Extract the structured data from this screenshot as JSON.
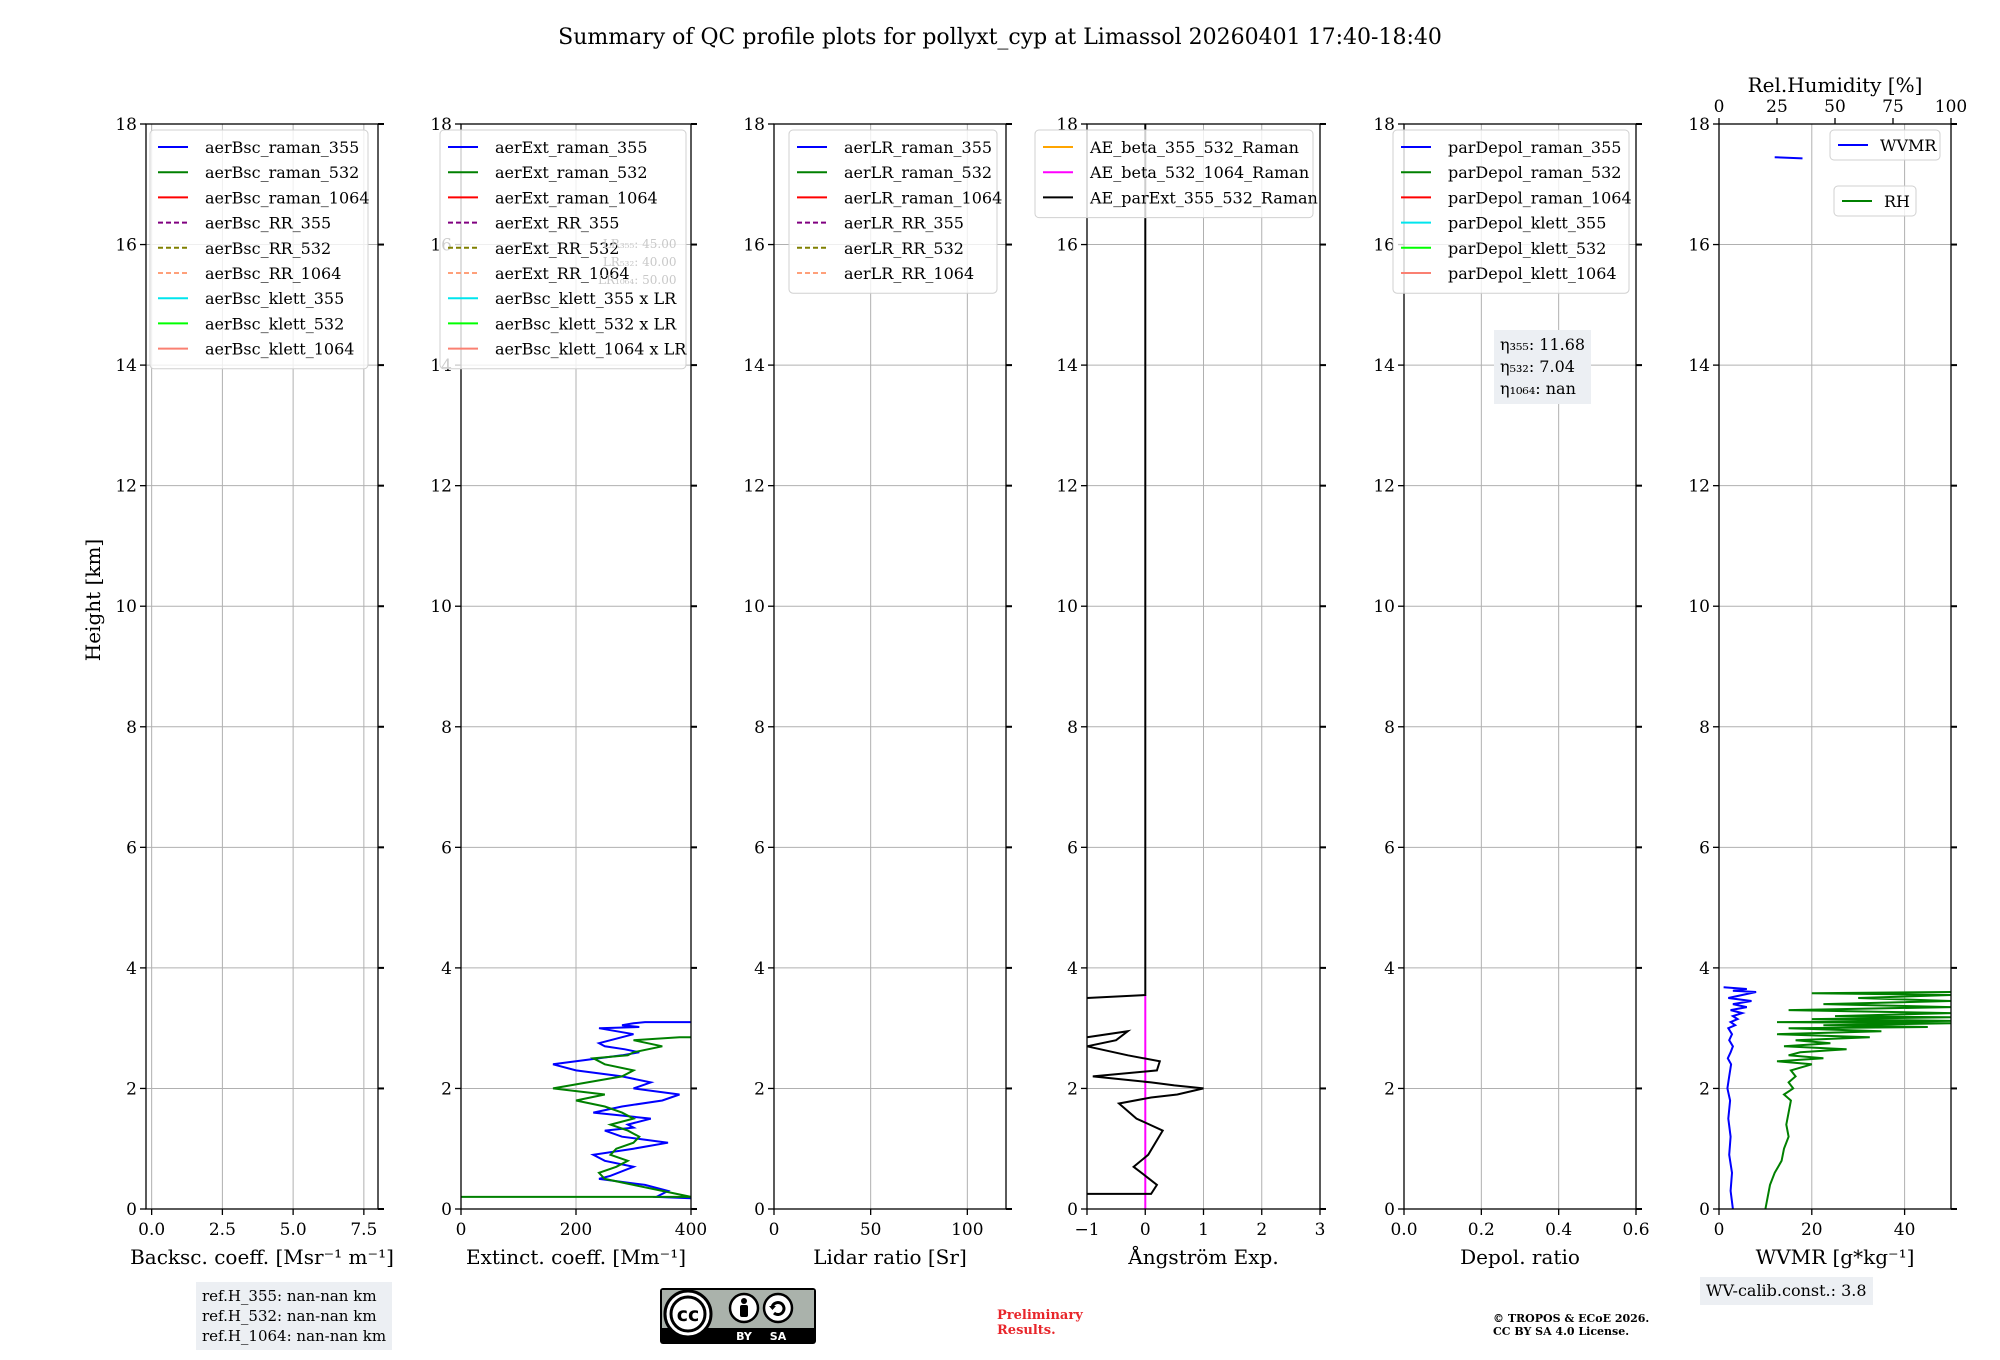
{
  "title": "Summary of QC profile plots for pollyxt_cyp at Limassol 20260401 17:40-18:40",
  "y_axis_label": "Height [km]",
  "chart_data": [
    {
      "type": "line",
      "id": "bsc",
      "xlabel": "Backsc. coeff. [Msr⁻¹ m⁻¹]",
      "xlim": [
        -0.2,
        8.0
      ],
      "xticks": [
        0.0,
        2.5,
        5.0,
        7.5
      ],
      "xtick_labels": [
        "0.0",
        "2.5",
        "5.0",
        "7.5"
      ],
      "ylim": [
        0,
        18
      ],
      "legend": [
        {
          "label": "aerBsc_raman_355",
          "color": "#0000ff",
          "dash": false
        },
        {
          "label": "aerBsc_raman_532",
          "color": "#008000",
          "dash": false
        },
        {
          "label": "aerBsc_raman_1064",
          "color": "#ff0000",
          "dash": false
        },
        {
          "label": "aerBsc_RR_355",
          "color": "#800080",
          "dash": true
        },
        {
          "label": "aerBsc_RR_532",
          "color": "#808000",
          "dash": true
        },
        {
          "label": "aerBsc_RR_1064",
          "color": "#ffa07a",
          "dash": true
        },
        {
          "label": "aerBsc_klett_355",
          "color": "#00e5ee",
          "dash": false
        },
        {
          "label": "aerBsc_klett_532",
          "color": "#00ff00",
          "dash": false
        },
        {
          "label": "aerBsc_klett_1064",
          "color": "#fa8072",
          "dash": false
        }
      ],
      "series": []
    },
    {
      "type": "line",
      "id": "ext",
      "xlabel": "Extinct. coeff. [Mm⁻¹]",
      "xlim": [
        0,
        400
      ],
      "xticks": [
        0,
        200,
        400
      ],
      "xtick_labels": [
        "0",
        "200",
        "400"
      ],
      "ylim": [
        0,
        18
      ],
      "legend": [
        {
          "label": "aerExt_raman_355",
          "color": "#0000ff",
          "dash": false
        },
        {
          "label": "aerExt_raman_532",
          "color": "#008000",
          "dash": false
        },
        {
          "label": "aerExt_raman_1064",
          "color": "#ff0000",
          "dash": false
        },
        {
          "label": "aerExt_RR_355",
          "color": "#800080",
          "dash": true
        },
        {
          "label": "aerExt_RR_532",
          "color": "#808000",
          "dash": true
        },
        {
          "label": "aerExt_RR_1064",
          "color": "#ffa07a",
          "dash": true
        },
        {
          "label": "aerBsc_klett_355 x LR",
          "color": "#00e5ee",
          "dash": false
        },
        {
          "label": "aerBsc_klett_532 x LR",
          "color": "#00ff00",
          "dash": false
        },
        {
          "label": "aerBsc_klett_1064 x LR",
          "color": "#fa8072",
          "dash": false
        }
      ],
      "lr_notes": [
        "LR₃₅₅: 45.00",
        "LR₅₃₂: 40.00",
        "LR₁₀₆₄: 50.00"
      ],
      "series": [
        {
          "name": "aerExt_raman_355",
          "color": "#0000ff",
          "x": [
            400,
            340,
            360,
            320,
            240,
            260,
            300,
            250,
            230,
            300,
            360,
            280,
            250,
            300,
            290,
            330,
            230,
            280,
            350,
            380,
            300,
            330,
            280,
            200,
            160,
            240,
            280,
            310,
            285,
            250,
            240,
            260,
            280,
            300,
            270,
            240,
            310,
            280,
            300,
            320,
            360,
            400
          ],
          "y": [
            0.18,
            0.2,
            0.3,
            0.4,
            0.5,
            0.55,
            0.7,
            0.8,
            0.9,
            1.0,
            1.1,
            1.2,
            1.3,
            1.35,
            1.4,
            1.5,
            1.6,
            1.7,
            1.8,
            1.9,
            2.0,
            2.1,
            2.2,
            2.3,
            2.4,
            2.5,
            2.55,
            2.6,
            2.65,
            2.7,
            2.75,
            2.8,
            2.85,
            2.9,
            2.95,
            3.0,
            3.02,
            3.05,
            3.08,
            3.1,
            3.1,
            3.1
          ]
        },
        {
          "name": "aerExt_raman_532",
          "color": "#008000",
          "x": [
            0,
            400,
            350,
            300,
            250,
            240,
            270,
            290,
            260,
            270,
            300,
            310,
            290,
            260,
            300,
            280,
            250,
            200,
            250,
            160,
            220,
            280,
            300,
            250,
            230,
            290,
            300,
            350,
            300,
            380,
            400
          ],
          "y": [
            0.2,
            0.2,
            0.3,
            0.4,
            0.5,
            0.6,
            0.7,
            0.8,
            0.9,
            1.0,
            1.1,
            1.2,
            1.3,
            1.4,
            1.5,
            1.6,
            1.7,
            1.8,
            1.9,
            2.0,
            2.1,
            2.2,
            2.3,
            2.4,
            2.5,
            2.55,
            2.6,
            2.7,
            2.8,
            2.85,
            2.85
          ]
        }
      ]
    },
    {
      "type": "line",
      "id": "lr",
      "xlabel": "Lidar ratio [Sr]",
      "xlim": [
        0,
        120
      ],
      "xticks": [
        0,
        50,
        100
      ],
      "xtick_labels": [
        "0",
        "50",
        "100"
      ],
      "ylim": [
        0,
        18
      ],
      "legend": [
        {
          "label": "aerLR_raman_355",
          "color": "#0000ff",
          "dash": false
        },
        {
          "label": "aerLR_raman_532",
          "color": "#008000",
          "dash": false
        },
        {
          "label": "aerLR_raman_1064",
          "color": "#ff0000",
          "dash": false
        },
        {
          "label": "aerLR_RR_355",
          "color": "#800080",
          "dash": true
        },
        {
          "label": "aerLR_RR_532",
          "color": "#808000",
          "dash": true
        },
        {
          "label": "aerLR_RR_1064",
          "color": "#ffa07a",
          "dash": true
        }
      ],
      "series": []
    },
    {
      "type": "line",
      "id": "ae",
      "xlabel": "Ångström Exp.",
      "xlim": [
        -1,
        3
      ],
      "xticks": [
        -1,
        0,
        1,
        2,
        3
      ],
      "xtick_labels": [
        "−1",
        "0",
        "1",
        "2",
        "3"
      ],
      "ylim": [
        0,
        18
      ],
      "legend": [
        {
          "label": "AE_beta_355_532_Raman",
          "color": "#ffa500",
          "dash": false
        },
        {
          "label": "AE_beta_532_1064_Raman",
          "color": "#ff00ff",
          "dash": false
        },
        {
          "label": "AE_parExt_355_532_Raman",
          "color": "#000000",
          "dash": false
        }
      ],
      "series": [
        {
          "name": "AE_beta_532_1064_Raman",
          "color": "#ff00ff",
          "x": [
            0,
            0
          ],
          "y": [
            0,
            3.55
          ]
        },
        {
          "name": "AE_parExt_355_532_Raman (upper)",
          "color": "#000000",
          "x": [
            0,
            0,
            -1
          ],
          "y": [
            18,
            3.55,
            3.5
          ]
        },
        {
          "name": "AE_parExt_355_532_Raman (lower)",
          "color": "#000000",
          "x": [
            -1,
            0.1,
            0.2,
            0,
            -0.2,
            0.05,
            0.3,
            -0.15,
            -0.45,
            0.1,
            0.55,
            1.0,
            0.5,
            0.1,
            -0.9,
            0.2,
            0.25,
            -0.3,
            -1.0,
            -0.5,
            -0.3,
            -1.0
          ],
          "y": [
            0.25,
            0.25,
            0.4,
            0.55,
            0.7,
            0.9,
            1.3,
            1.5,
            1.75,
            1.85,
            1.9,
            2.0,
            2.05,
            2.1,
            2.2,
            2.3,
            2.45,
            2.55,
            2.7,
            2.8,
            2.95,
            2.85
          ]
        }
      ]
    },
    {
      "type": "line",
      "id": "depol",
      "xlabel": "Depol. ratio",
      "xlim": [
        0,
        0.6
      ],
      "xticks": [
        0.0,
        0.2,
        0.4,
        0.6
      ],
      "xtick_labels": [
        "0.0",
        "0.2",
        "0.4",
        "0.6"
      ],
      "ylim": [
        0,
        18
      ],
      "legend": [
        {
          "label": "parDepol_raman_355",
          "color": "#0000ff",
          "dash": false
        },
        {
          "label": "parDepol_raman_532",
          "color": "#008000",
          "dash": false
        },
        {
          "label": "parDepol_raman_1064",
          "color": "#ff0000",
          "dash": false
        },
        {
          "label": "parDepol_klett_355",
          "color": "#00e5ee",
          "dash": false
        },
        {
          "label": "parDepol_klett_532",
          "color": "#00ff00",
          "dash": false
        },
        {
          "label": "parDepol_klett_1064",
          "color": "#fa8072",
          "dash": false
        }
      ],
      "eta": [
        "η₃₅₅: 11.68",
        "η₅₃₂: 7.04",
        "η₁₀₆₄: nan"
      ],
      "series": []
    },
    {
      "type": "line",
      "id": "wv",
      "xlabel": "WVMR [g*kg⁻¹]",
      "xlim": [
        0,
        50
      ],
      "xticks": [
        0,
        20,
        40
      ],
      "xtick_labels": [
        "0",
        "20",
        "40"
      ],
      "top_xlabel": "Rel.Humidity [%]",
      "top_xlim": [
        0,
        100
      ],
      "top_xticks": [
        0,
        25,
        50,
        75,
        100
      ],
      "top_xtick_labels": [
        "0",
        "25",
        "50",
        "75",
        "100"
      ],
      "ylim": [
        0,
        18
      ],
      "legend": [
        {
          "label": "WVMR",
          "color": "#0000ff",
          "dash": false
        },
        {
          "label": "RH",
          "color": "#008000",
          "dash": false
        }
      ],
      "series": [
        {
          "name": "WVMR",
          "color": "#0000ff",
          "axis": "bottom",
          "x": [
            3,
            2.5,
            2.8,
            2.2,
            2.5,
            2,
            2.4,
            1.8,
            2.2,
            2.6,
            1.9,
            2.5,
            3,
            2.2,
            2.8,
            2,
            3.5,
            2.5,
            4,
            3,
            5,
            2.5,
            6,
            3,
            7,
            2,
            5,
            8,
            3,
            6,
            1
          ],
          "y": [
            0,
            0.3,
            0.6,
            0.9,
            1.2,
            1.5,
            1.8,
            2.0,
            2.2,
            2.4,
            2.5,
            2.6,
            2.7,
            2.8,
            2.9,
            3.0,
            3.05,
            3.1,
            3.15,
            3.2,
            3.25,
            3.3,
            3.35,
            3.4,
            3.45,
            3.5,
            3.55,
            3.6,
            3.62,
            3.65,
            3.68
          ]
        },
        {
          "name": "WVMR (17.4 km)",
          "color": "#0000ff",
          "axis": "bottom",
          "x": [
            12,
            18
          ],
          "y": [
            17.45,
            17.43
          ]
        },
        {
          "name": "RH",
          "color": "#008000",
          "axis": "top",
          "x": [
            20,
            21,
            22,
            24,
            27,
            28,
            30,
            29,
            30,
            31,
            28,
            32,
            30,
            33,
            31,
            40,
            25,
            45,
            30,
            35,
            55,
            28,
            48,
            33,
            65,
            25,
            70,
            30,
            90,
            45,
            100,
            25,
            100,
            40,
            100,
            50,
            100,
            30,
            100,
            45,
            100,
            60,
            100,
            40,
            100
          ],
          "y": [
            0,
            0.2,
            0.4,
            0.6,
            0.8,
            1.0,
            1.2,
            1.4,
            1.6,
            1.8,
            1.9,
            2.0,
            2.1,
            2.2,
            2.3,
            2.4,
            2.45,
            2.5,
            2.55,
            2.6,
            2.65,
            2.7,
            2.75,
            2.8,
            2.85,
            2.9,
            2.95,
            3.0,
            3.02,
            3.05,
            3.08,
            3.1,
            3.12,
            3.15,
            3.18,
            3.2,
            3.25,
            3.3,
            3.35,
            3.4,
            3.45,
            3.5,
            3.55,
            3.58,
            3.6
          ]
        }
      ]
    }
  ],
  "ref_heights": [
    "ref.H_355: nan-nan km",
    "ref.H_532: nan-nan km",
    "ref.H_1064: nan-nan km"
  ],
  "wv_calib": "WV-calib.const.: 3.8",
  "cc_badge": {
    "cc": "cc",
    "by": "BY",
    "sa": "SA"
  },
  "preliminary": [
    "Preliminary",
    "Results."
  ],
  "copyright": [
    "© TROPOS & ECoE 2026.",
    "CC BY SA 4.0 License."
  ]
}
